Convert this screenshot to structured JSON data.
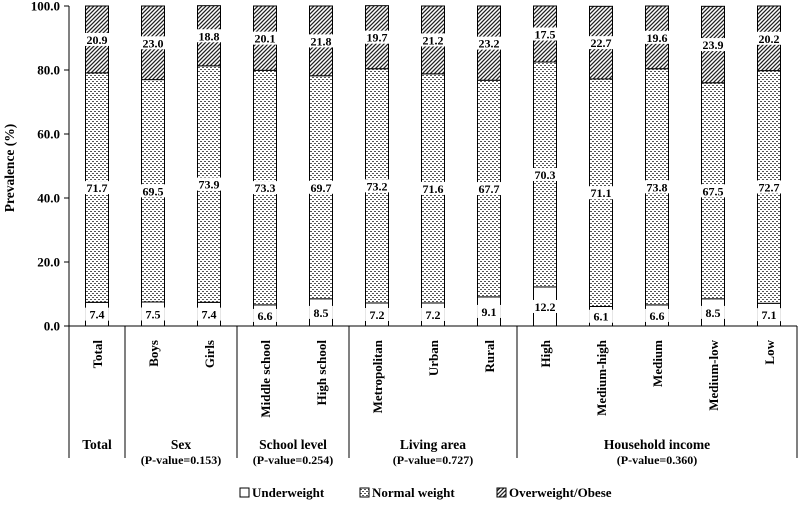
{
  "chart_data": {
    "type": "bar",
    "stacked": true,
    "ylabel": "Prevalence (%)",
    "ylim": [
      0,
      100
    ],
    "yticks": [
      "0.0",
      "20.0",
      "40.0",
      "60.0",
      "80.0",
      "100.0"
    ],
    "grid": false,
    "legend_position": "bottom",
    "categories": [
      "Total",
      "Boys",
      "Girls",
      "Middle school",
      "High school",
      "Metropolitan",
      "Urban",
      "Rural",
      "High",
      "Medium-high",
      "Medium",
      "Medium-low",
      "Low"
    ],
    "groups": [
      {
        "label": "Total",
        "pvalue": "",
        "categories": [
          "Total"
        ]
      },
      {
        "label": "Sex",
        "pvalue": "(P-value=0.153)",
        "categories": [
          "Boys",
          "Girls"
        ]
      },
      {
        "label": "School level",
        "pvalue": "(P-value=0.254)",
        "categories": [
          "Middle school",
          "High school"
        ]
      },
      {
        "label": "Living area",
        "pvalue": "(P-value=0.727)",
        "categories": [
          "Metropolitan",
          "Urban",
          "Rural"
        ]
      },
      {
        "label": "Household income",
        "pvalue": "(P-value=0.360)",
        "categories": [
          "High",
          "Medium-high",
          "Medium",
          "Medium-low",
          "Low"
        ]
      }
    ],
    "series": [
      {
        "name": "Underweight",
        "pattern": "blank",
        "values": [
          7.4,
          7.5,
          7.4,
          6.6,
          8.5,
          7.2,
          7.2,
          9.1,
          12.2,
          6.1,
          6.6,
          8.5,
          7.1
        ],
        "labels": [
          "7.4",
          "7.5",
          "7.4",
          "6.6",
          "8.5",
          "7.2",
          "7.2",
          "9.1",
          "12.2",
          "6.1",
          "6.6",
          "8.5",
          "7.1"
        ]
      },
      {
        "name": "Normal weight",
        "pattern": "dots",
        "values": [
          71.7,
          69.5,
          73.9,
          73.3,
          69.7,
          73.2,
          71.6,
          67.7,
          70.3,
          71.1,
          73.8,
          67.5,
          72.7
        ],
        "labels": [
          "71.7",
          "69.5",
          "73.9",
          "73.3",
          "69.7",
          "73.2",
          "71.6",
          "67.7",
          "70.3",
          "71.1",
          "73.8",
          "67.5",
          "72.7"
        ]
      },
      {
        "name": "Overweight/Obese",
        "pattern": "diagonal",
        "values": [
          20.9,
          23.0,
          18.8,
          20.1,
          21.8,
          19.7,
          21.2,
          23.2,
          17.5,
          22.7,
          19.6,
          23.9,
          20.2
        ],
        "labels": [
          "20.9",
          "23.0",
          "18.8",
          "20.1",
          "21.8",
          "19.7",
          "21.2",
          "23.2",
          "17.5",
          "22.7",
          "19.6",
          "23.9",
          "20.2"
        ]
      }
    ]
  }
}
